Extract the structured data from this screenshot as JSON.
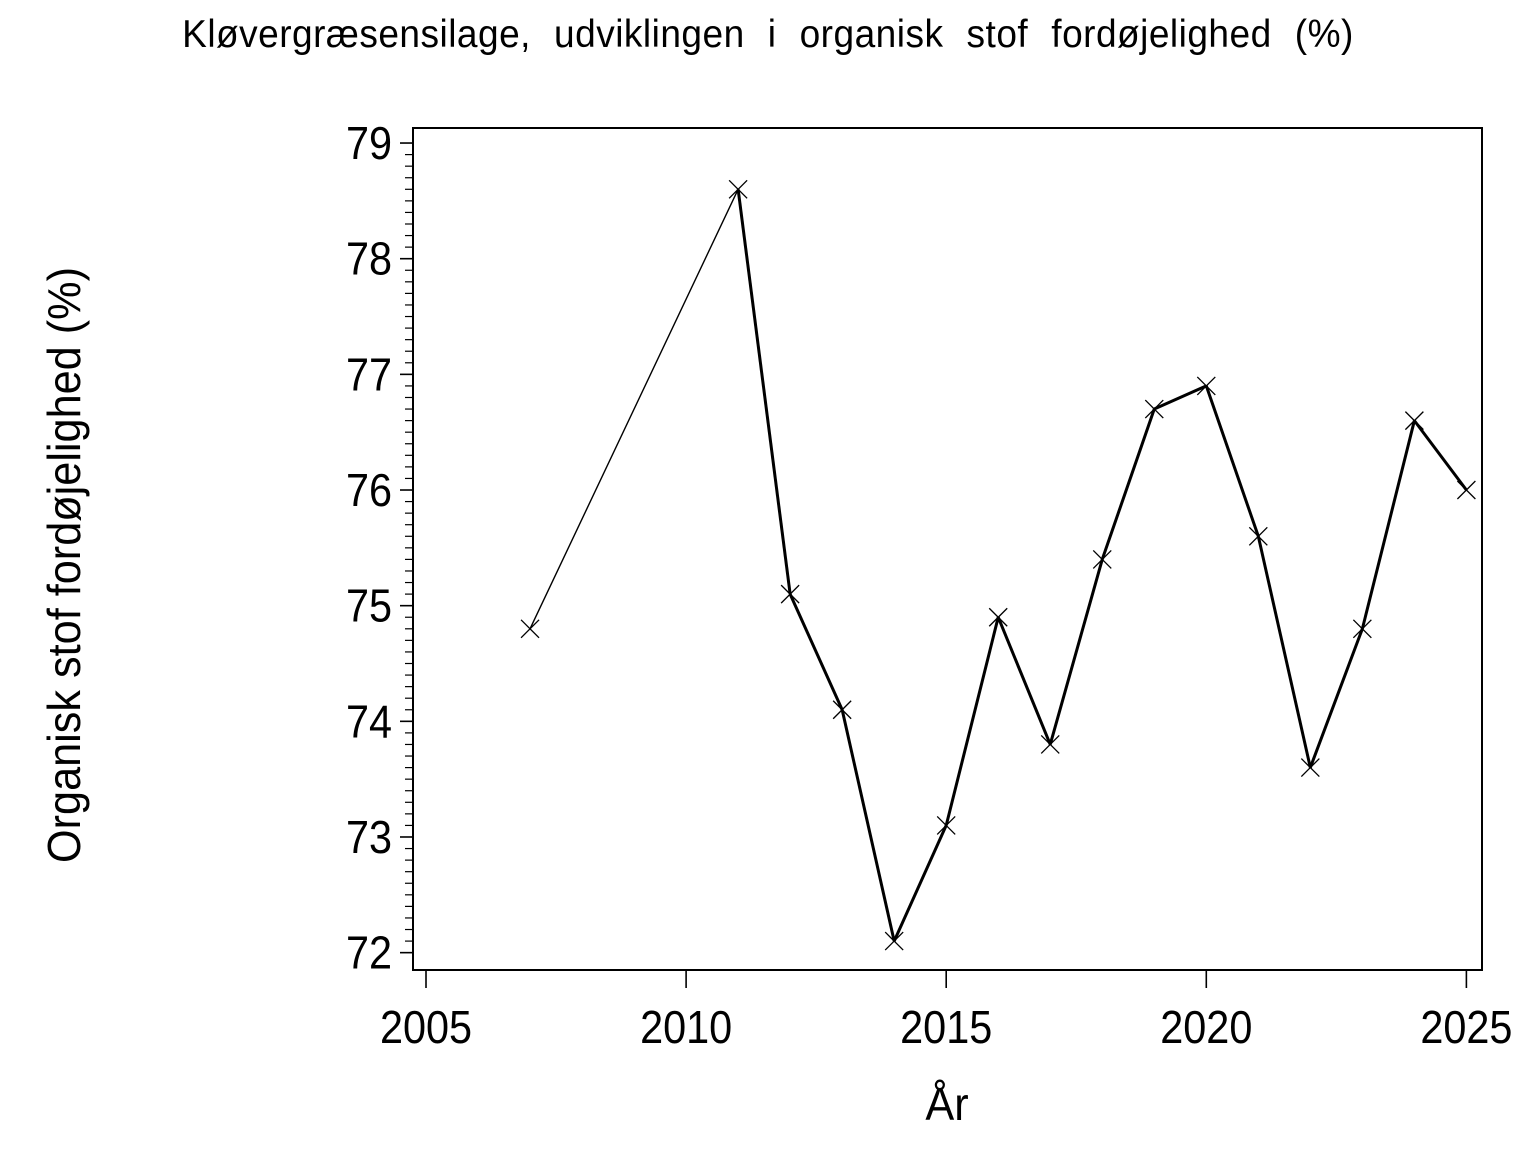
{
  "page": {
    "background": "#ffffff",
    "foreground": "#000000"
  },
  "chart_data": {
    "type": "line",
    "title": "Kløvergræsensilage, udviklingen i organisk stof fordøjelighed (%)",
    "xlabel": "År",
    "ylabel": "Organisk stof fordøjelighed (%)",
    "x": [
      2007,
      2011,
      2012,
      2013,
      2014,
      2015,
      2016,
      2017,
      2018,
      2019,
      2020,
      2021,
      2022,
      2023,
      2024,
      2025
    ],
    "values": [
      74.8,
      78.6,
      75.1,
      74.1,
      72.1,
      73.1,
      74.9,
      73.8,
      75.4,
      76.7,
      76.9,
      75.6,
      73.6,
      74.8,
      76.6,
      76.0
    ],
    "x_ticks": [
      2005,
      2010,
      2015,
      2020,
      2025
    ],
    "y_ticks": [
      72,
      73,
      74,
      75,
      76,
      77,
      78,
      79
    ],
    "y_minor_tick_step": 0.1,
    "xlim": [
      2004.75,
      2025.3
    ],
    "ylim": [
      71.85,
      79.13
    ],
    "marker": "x",
    "line_color": "#000000",
    "grid": false,
    "legend": "none"
  }
}
